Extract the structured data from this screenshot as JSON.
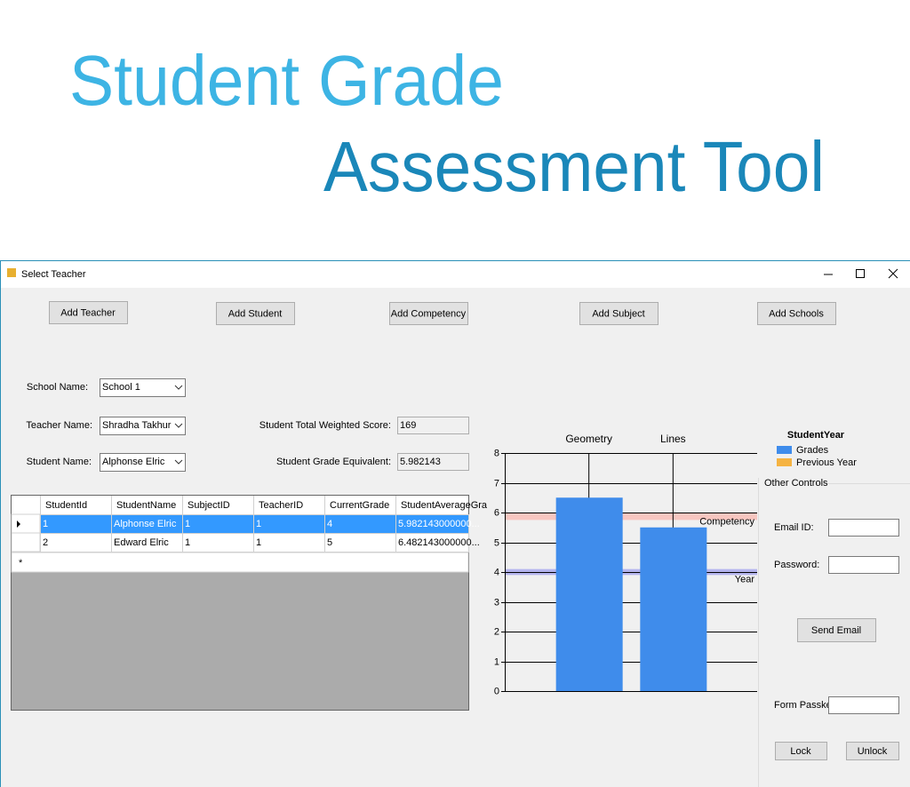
{
  "header": {
    "line1": "Student Grade",
    "line2": "Assessment Tool"
  },
  "window": {
    "title": "Select Teacher"
  },
  "buttons": [
    "Add Teacher",
    "Add Student",
    "Add Competency",
    "Add Subject",
    "Add Schools"
  ],
  "form": {
    "school_label": "School Name:",
    "school_value": "School 1",
    "teacher_label": "Teacher Name:",
    "teacher_value": "Shradha Takhur",
    "student_label": "Student Name:",
    "student_value": "Alphonse Elric",
    "score_label": "Student Total Weighted Score:",
    "score_value": "169",
    "grade_label": "Student Grade Equivalent:",
    "grade_value": "5.982143"
  },
  "grid": {
    "columns": [
      "StudentId",
      "StudentName",
      "SubjectID",
      "TeacherID",
      "CurrentGrade",
      "StudentAverageGra"
    ],
    "rows": [
      [
        "1",
        "Alphonse Elric",
        "1",
        "1",
        "4",
        "5.982143000000..."
      ],
      [
        "2",
        "Edward Elric",
        "1",
        "1",
        "5",
        "6.482143000000..."
      ]
    ],
    "new_row_marker": "*"
  },
  "chart_data": {
    "type": "bar",
    "categories": [
      "Geometry",
      "Lines"
    ],
    "series": [
      {
        "name": "Grades",
        "color": "#3f8ceb",
        "values": [
          6.5,
          5.5
        ]
      },
      {
        "name": "Previous Year",
        "color": "#f5b342"
      }
    ],
    "legend_title": "StudentYear",
    "ylim": [
      0,
      8
    ],
    "yticks": [
      0,
      1,
      2,
      3,
      4,
      5,
      6,
      7,
      8
    ],
    "grid": true,
    "strip_lines": [
      {
        "label": "Competency",
        "from": 5.75,
        "to": 6.0,
        "color": "#f7c6c0"
      },
      {
        "label": "Year",
        "from": 3.9,
        "to": 4.1,
        "color": "#b4b4ee"
      }
    ]
  },
  "other_controls": {
    "title": "Other Controls",
    "email_label": "Email ID:",
    "password_label": "Password:",
    "send_button": "Send Email",
    "passkey_label": "Form Passkey:",
    "lock_button": "Lock",
    "unlock_button": "Unlock"
  }
}
